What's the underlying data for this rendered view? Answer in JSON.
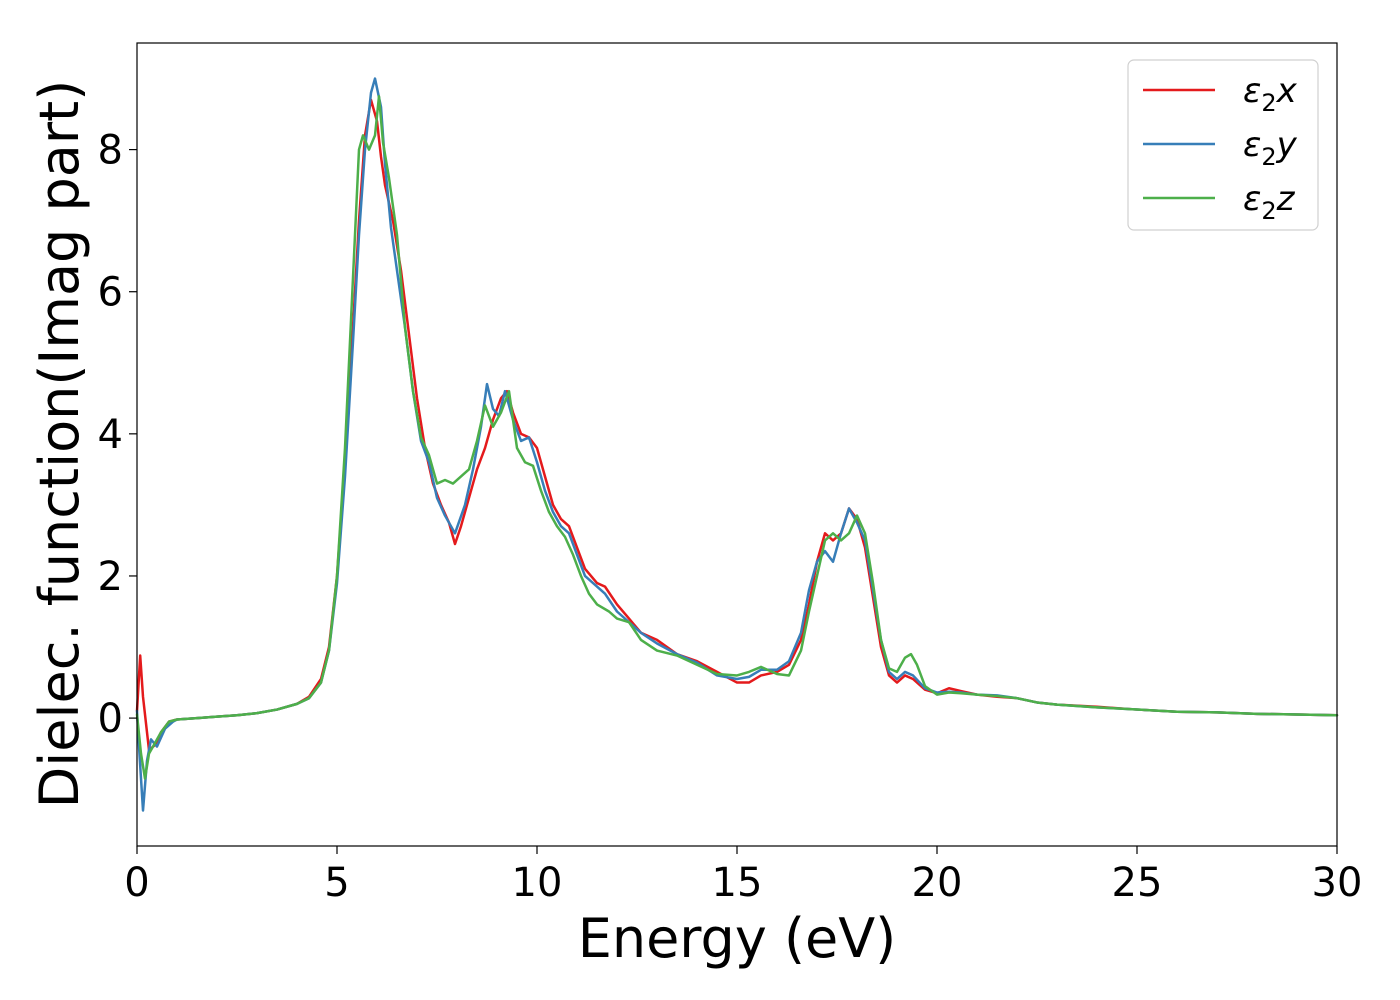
{
  "chart_data": {
    "type": "line",
    "xlabel": "Energy (eV)",
    "ylabel": "Dielec. function(Imag part)",
    "xlim": [
      0,
      30
    ],
    "ylim": [
      -1.8,
      9.5
    ],
    "xticks": [
      0,
      5,
      10,
      15,
      20,
      25,
      30
    ],
    "yticks": [
      0,
      2,
      4,
      6,
      8
    ],
    "xtick_labels": [
      "0",
      "5",
      "10",
      "15",
      "20",
      "25",
      "30"
    ],
    "ytick_labels": [
      "0",
      "2",
      "4",
      "6",
      "8"
    ],
    "grid": false,
    "legend_position": "top-right",
    "series": [
      {
        "name": "ε₂x",
        "legend_base": "ε",
        "legend_sub": "2",
        "legend_suffix": "x",
        "color": "#e41a1c",
        "points": [
          [
            0,
            0.1
          ],
          [
            0.08,
            0.88
          ],
          [
            0.15,
            0.3
          ],
          [
            0.3,
            -0.45
          ],
          [
            0.45,
            -0.38
          ],
          [
            0.6,
            -0.2
          ],
          [
            0.8,
            -0.05
          ],
          [
            1.0,
            -0.02
          ],
          [
            1.5,
            0.0
          ],
          [
            2,
            0.02
          ],
          [
            2.5,
            0.04
          ],
          [
            3,
            0.07
          ],
          [
            3.5,
            0.12
          ],
          [
            4,
            0.2
          ],
          [
            4.3,
            0.3
          ],
          [
            4.6,
            0.55
          ],
          [
            4.8,
            1.0
          ],
          [
            5.0,
            2.0
          ],
          [
            5.2,
            3.6
          ],
          [
            5.4,
            5.5
          ],
          [
            5.55,
            7.0
          ],
          [
            5.7,
            8.2
          ],
          [
            5.85,
            8.7
          ],
          [
            6.0,
            8.4
          ],
          [
            6.1,
            7.9
          ],
          [
            6.2,
            7.5
          ],
          [
            6.4,
            7.0
          ],
          [
            6.6,
            6.3
          ],
          [
            6.8,
            5.4
          ],
          [
            7.0,
            4.5
          ],
          [
            7.2,
            3.8
          ],
          [
            7.4,
            3.3
          ],
          [
            7.6,
            3.0
          ],
          [
            7.8,
            2.75
          ],
          [
            7.95,
            2.45
          ],
          [
            8.1,
            2.7
          ],
          [
            8.3,
            3.1
          ],
          [
            8.5,
            3.5
          ],
          [
            8.7,
            3.8
          ],
          [
            8.9,
            4.2
          ],
          [
            9.1,
            4.5
          ],
          [
            9.25,
            4.6
          ],
          [
            9.4,
            4.3
          ],
          [
            9.6,
            4.0
          ],
          [
            9.8,
            3.95
          ],
          [
            10.0,
            3.8
          ],
          [
            10.2,
            3.4
          ],
          [
            10.4,
            3.0
          ],
          [
            10.6,
            2.8
          ],
          [
            10.8,
            2.7
          ],
          [
            11.0,
            2.4
          ],
          [
            11.2,
            2.1
          ],
          [
            11.5,
            1.9
          ],
          [
            11.7,
            1.85
          ],
          [
            12.0,
            1.6
          ],
          [
            12.3,
            1.4
          ],
          [
            12.6,
            1.2
          ],
          [
            13.0,
            1.1
          ],
          [
            13.5,
            0.9
          ],
          [
            14.0,
            0.8
          ],
          [
            14.5,
            0.65
          ],
          [
            15.0,
            0.5
          ],
          [
            15.3,
            0.5
          ],
          [
            15.6,
            0.6
          ],
          [
            16.0,
            0.65
          ],
          [
            16.3,
            0.75
          ],
          [
            16.6,
            1.1
          ],
          [
            16.8,
            1.6
          ],
          [
            17.0,
            2.2
          ],
          [
            17.2,
            2.6
          ],
          [
            17.4,
            2.5
          ],
          [
            17.6,
            2.6
          ],
          [
            17.8,
            2.95
          ],
          [
            18.0,
            2.8
          ],
          [
            18.2,
            2.4
          ],
          [
            18.4,
            1.7
          ],
          [
            18.6,
            1.0
          ],
          [
            18.8,
            0.6
          ],
          [
            19.0,
            0.5
          ],
          [
            19.2,
            0.6
          ],
          [
            19.4,
            0.55
          ],
          [
            19.7,
            0.4
          ],
          [
            20.0,
            0.35
          ],
          [
            20.3,
            0.42
          ],
          [
            20.6,
            0.38
          ],
          [
            21.0,
            0.33
          ],
          [
            21.5,
            0.3
          ],
          [
            22.0,
            0.28
          ],
          [
            22.5,
            0.22
          ],
          [
            23,
            0.19
          ],
          [
            24,
            0.16
          ],
          [
            25,
            0.12
          ],
          [
            26,
            0.09
          ],
          [
            27,
            0.08
          ],
          [
            28,
            0.06
          ],
          [
            29,
            0.05
          ],
          [
            30,
            0.04
          ]
        ]
      },
      {
        "name": "ε₂y",
        "legend_base": "ε",
        "legend_sub": "2",
        "legend_suffix": "y",
        "color": "#377eb8",
        "points": [
          [
            0,
            0.1
          ],
          [
            0.05,
            -0.4
          ],
          [
            0.15,
            -1.3
          ],
          [
            0.25,
            -0.6
          ],
          [
            0.35,
            -0.3
          ],
          [
            0.5,
            -0.4
          ],
          [
            0.7,
            -0.15
          ],
          [
            0.9,
            -0.05
          ],
          [
            1.0,
            -0.02
          ],
          [
            1.5,
            0.0
          ],
          [
            2,
            0.02
          ],
          [
            2.5,
            0.04
          ],
          [
            3,
            0.07
          ],
          [
            3.5,
            0.12
          ],
          [
            4,
            0.2
          ],
          [
            4.3,
            0.28
          ],
          [
            4.6,
            0.5
          ],
          [
            4.8,
            0.95
          ],
          [
            5.0,
            1.9
          ],
          [
            5.2,
            3.4
          ],
          [
            5.4,
            5.3
          ],
          [
            5.55,
            6.8
          ],
          [
            5.7,
            8.0
          ],
          [
            5.85,
            8.8
          ],
          [
            5.95,
            9.0
          ],
          [
            6.1,
            8.6
          ],
          [
            6.2,
            7.8
          ],
          [
            6.35,
            6.9
          ],
          [
            6.5,
            6.3
          ],
          [
            6.7,
            5.5
          ],
          [
            6.9,
            4.6
          ],
          [
            7.1,
            3.9
          ],
          [
            7.3,
            3.6
          ],
          [
            7.5,
            3.1
          ],
          [
            7.7,
            2.85
          ],
          [
            7.95,
            2.6
          ],
          [
            8.2,
            3.0
          ],
          [
            8.4,
            3.5
          ],
          [
            8.6,
            4.1
          ],
          [
            8.75,
            4.7
          ],
          [
            8.9,
            4.35
          ],
          [
            9.05,
            4.25
          ],
          [
            9.2,
            4.6
          ],
          [
            9.4,
            4.2
          ],
          [
            9.6,
            3.9
          ],
          [
            9.8,
            3.95
          ],
          [
            10.0,
            3.6
          ],
          [
            10.2,
            3.2
          ],
          [
            10.4,
            2.9
          ],
          [
            10.6,
            2.7
          ],
          [
            10.8,
            2.6
          ],
          [
            11.0,
            2.3
          ],
          [
            11.2,
            2.0
          ],
          [
            11.5,
            1.85
          ],
          [
            11.7,
            1.75
          ],
          [
            12.0,
            1.5
          ],
          [
            12.3,
            1.35
          ],
          [
            12.6,
            1.2
          ],
          [
            13.0,
            1.05
          ],
          [
            13.5,
            0.9
          ],
          [
            14.0,
            0.78
          ],
          [
            14.5,
            0.6
          ],
          [
            15.0,
            0.55
          ],
          [
            15.3,
            0.58
          ],
          [
            15.6,
            0.68
          ],
          [
            16.0,
            0.68
          ],
          [
            16.3,
            0.8
          ],
          [
            16.6,
            1.2
          ],
          [
            16.8,
            1.8
          ],
          [
            17.0,
            2.2
          ],
          [
            17.2,
            2.35
          ],
          [
            17.4,
            2.2
          ],
          [
            17.6,
            2.6
          ],
          [
            17.8,
            2.95
          ],
          [
            18.0,
            2.75
          ],
          [
            18.2,
            2.5
          ],
          [
            18.4,
            1.8
          ],
          [
            18.6,
            1.1
          ],
          [
            18.8,
            0.65
          ],
          [
            19.0,
            0.55
          ],
          [
            19.2,
            0.65
          ],
          [
            19.4,
            0.6
          ],
          [
            19.7,
            0.42
          ],
          [
            20.0,
            0.36
          ],
          [
            20.3,
            0.37
          ],
          [
            20.6,
            0.36
          ],
          [
            21.0,
            0.33
          ],
          [
            21.5,
            0.32
          ],
          [
            22.0,
            0.28
          ],
          [
            22.5,
            0.22
          ],
          [
            23,
            0.19
          ],
          [
            24,
            0.15
          ],
          [
            25,
            0.12
          ],
          [
            26,
            0.09
          ],
          [
            27,
            0.08
          ],
          [
            28,
            0.06
          ],
          [
            29,
            0.05
          ],
          [
            30,
            0.04
          ]
        ]
      },
      {
        "name": "ε₂z",
        "legend_base": "ε",
        "legend_sub": "2",
        "legend_suffix": "z",
        "color": "#4daf4a",
        "points": [
          [
            0,
            0.05
          ],
          [
            0.1,
            -0.5
          ],
          [
            0.2,
            -0.85
          ],
          [
            0.3,
            -0.5
          ],
          [
            0.45,
            -0.35
          ],
          [
            0.6,
            -0.2
          ],
          [
            0.8,
            -0.05
          ],
          [
            1.0,
            -0.02
          ],
          [
            1.5,
            0.0
          ],
          [
            2,
            0.02
          ],
          [
            2.5,
            0.04
          ],
          [
            3,
            0.07
          ],
          [
            3.5,
            0.12
          ],
          [
            4,
            0.2
          ],
          [
            4.3,
            0.28
          ],
          [
            4.6,
            0.5
          ],
          [
            4.8,
            0.95
          ],
          [
            5.0,
            2.0
          ],
          [
            5.2,
            3.8
          ],
          [
            5.4,
            6.2
          ],
          [
            5.55,
            8.0
          ],
          [
            5.65,
            8.2
          ],
          [
            5.8,
            8.0
          ],
          [
            5.95,
            8.2
          ],
          [
            6.05,
            8.75
          ],
          [
            6.15,
            8.1
          ],
          [
            6.3,
            7.6
          ],
          [
            6.5,
            6.8
          ],
          [
            6.7,
            5.5
          ],
          [
            6.9,
            4.6
          ],
          [
            7.1,
            3.95
          ],
          [
            7.3,
            3.7
          ],
          [
            7.5,
            3.3
          ],
          [
            7.7,
            3.35
          ],
          [
            7.9,
            3.3
          ],
          [
            8.1,
            3.4
          ],
          [
            8.3,
            3.5
          ],
          [
            8.5,
            3.9
          ],
          [
            8.7,
            4.4
          ],
          [
            8.9,
            4.1
          ],
          [
            9.1,
            4.3
          ],
          [
            9.3,
            4.6
          ],
          [
            9.5,
            3.8
          ],
          [
            9.7,
            3.6
          ],
          [
            9.9,
            3.55
          ],
          [
            10.1,
            3.2
          ],
          [
            10.3,
            2.9
          ],
          [
            10.5,
            2.7
          ],
          [
            10.7,
            2.55
          ],
          [
            10.9,
            2.3
          ],
          [
            11.1,
            2.0
          ],
          [
            11.3,
            1.75
          ],
          [
            11.5,
            1.6
          ],
          [
            11.8,
            1.5
          ],
          [
            12.0,
            1.4
          ],
          [
            12.3,
            1.35
          ],
          [
            12.6,
            1.1
          ],
          [
            13.0,
            0.95
          ],
          [
            13.5,
            0.88
          ],
          [
            14.0,
            0.75
          ],
          [
            14.5,
            0.62
          ],
          [
            15.0,
            0.6
          ],
          [
            15.3,
            0.65
          ],
          [
            15.6,
            0.72
          ],
          [
            16.0,
            0.62
          ],
          [
            16.3,
            0.6
          ],
          [
            16.6,
            0.95
          ],
          [
            16.8,
            1.5
          ],
          [
            17.0,
            2.0
          ],
          [
            17.2,
            2.5
          ],
          [
            17.4,
            2.6
          ],
          [
            17.6,
            2.5
          ],
          [
            17.8,
            2.6
          ],
          [
            18.0,
            2.85
          ],
          [
            18.2,
            2.6
          ],
          [
            18.4,
            1.9
          ],
          [
            18.6,
            1.1
          ],
          [
            18.8,
            0.7
          ],
          [
            19.0,
            0.65
          ],
          [
            19.2,
            0.85
          ],
          [
            19.35,
            0.9
          ],
          [
            19.5,
            0.75
          ],
          [
            19.7,
            0.45
          ],
          [
            20.0,
            0.33
          ],
          [
            20.3,
            0.36
          ],
          [
            20.6,
            0.35
          ],
          [
            21.0,
            0.33
          ],
          [
            21.5,
            0.31
          ],
          [
            22.0,
            0.28
          ],
          [
            22.5,
            0.22
          ],
          [
            23,
            0.19
          ],
          [
            24,
            0.15
          ],
          [
            25,
            0.12
          ],
          [
            26,
            0.09
          ],
          [
            27,
            0.08
          ],
          [
            28,
            0.06
          ],
          [
            29,
            0.05
          ],
          [
            30,
            0.04
          ]
        ]
      }
    ]
  }
}
